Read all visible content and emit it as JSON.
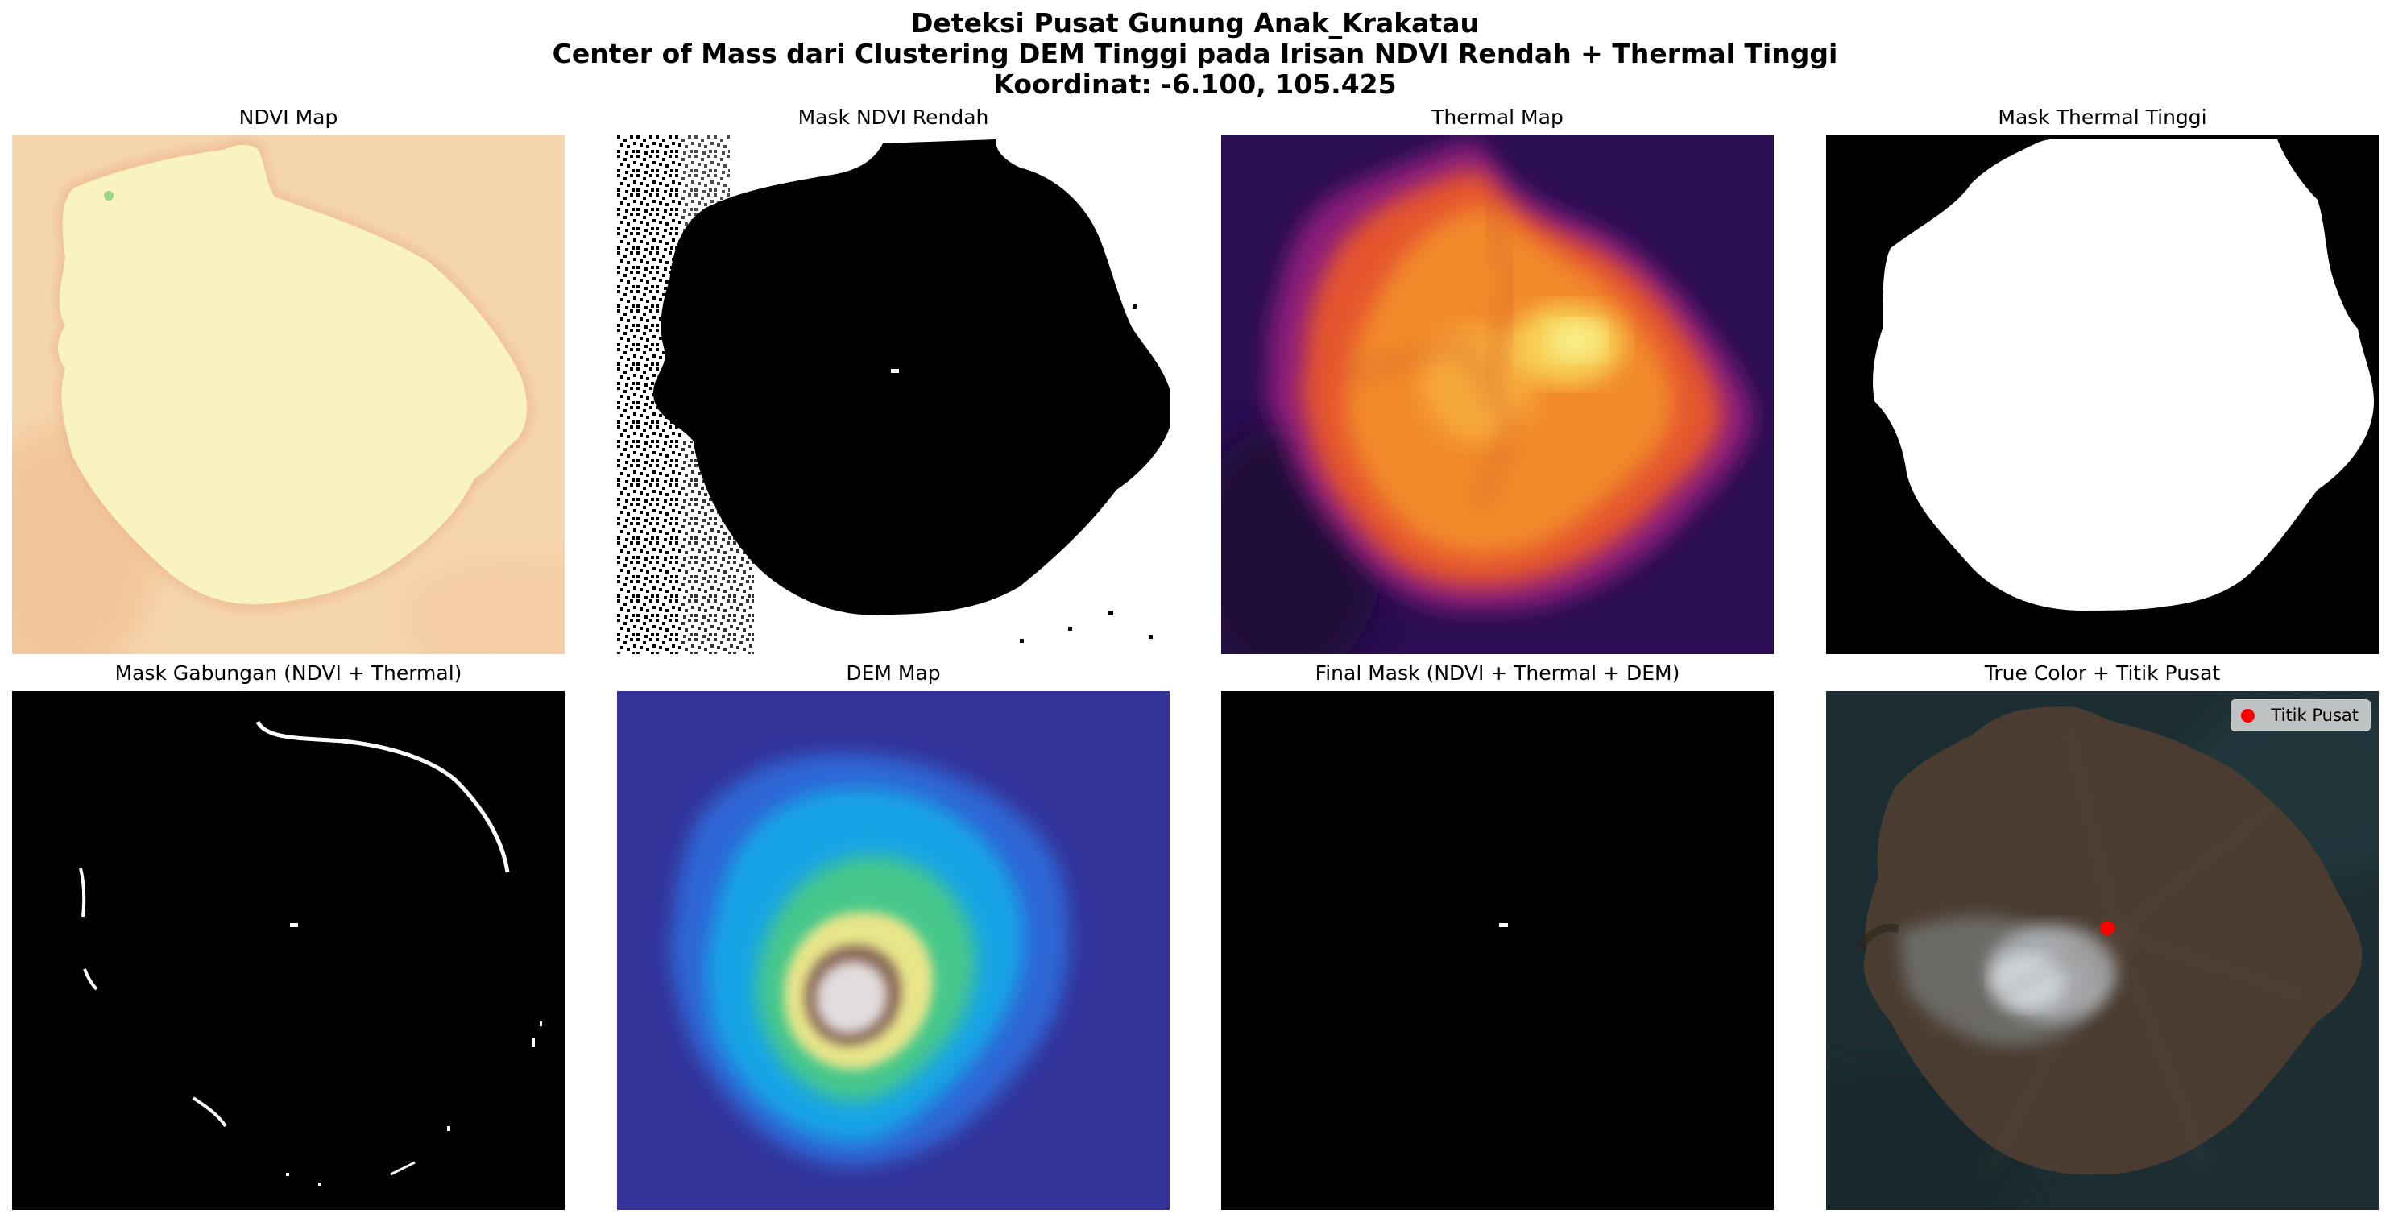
{
  "figure": {
    "title_lines": [
      "Deteksi Pusat Gunung Anak_Krakatau",
      "Center of Mass dari Clustering DEM Tinggi pada Irisan NDVI Rendah + Thermal Tinggi",
      "Koordinat: -6.100, 105.425"
    ]
  },
  "panels": [
    {
      "title": "NDVI Map"
    },
    {
      "title": "Mask NDVI Rendah"
    },
    {
      "title": "Thermal Map"
    },
    {
      "title": "Mask Thermal Tinggi"
    },
    {
      "title": "Mask Gabungan (NDVI + Thermal)"
    },
    {
      "title": "DEM Map"
    },
    {
      "title": "Final Mask (NDVI + Thermal + DEM)"
    },
    {
      "title": "True Color + Titik Pusat"
    }
  ],
  "legend": {
    "label": "Titik Pusat",
    "marker_color": "#ff0000"
  },
  "colors": {
    "ndvi_land": "#f9f1b8",
    "ndvi_water": "#f3c79a",
    "thermal_bg": "#2a0d52",
    "thermal_hot": "#f6a52e",
    "mask_white": "#ffffff",
    "mask_black": "#000000",
    "dem_low": "#323399",
    "sea": "#1a2b30"
  },
  "colormaps": {
    "ndvi": "RdYlGn",
    "thermal": "inferno",
    "dem": "terrain"
  }
}
